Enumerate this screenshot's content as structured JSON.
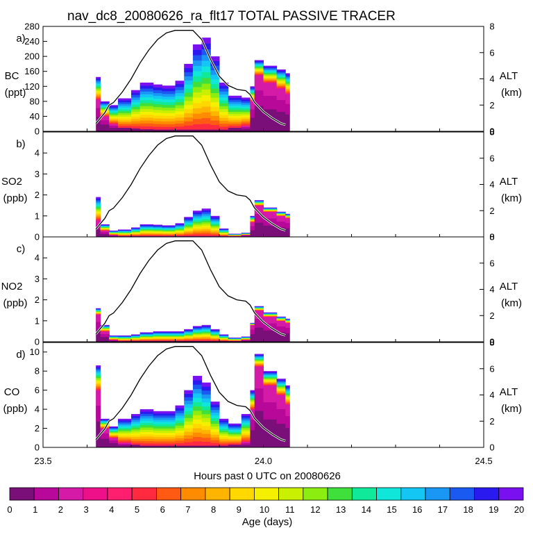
{
  "title": "nav_dc8_20080626_ra_flt17 TOTAL PASSIVE TRACER",
  "xaxis": {
    "label": "Hours past 0 UTC on 20080626",
    "range": [
      23.5,
      24.5
    ],
    "ticks": [
      "23.5",
      "24.0",
      "24.5"
    ]
  },
  "colorbar": {
    "label": "Age (days)",
    "ticks": [
      "0",
      "1",
      "2",
      "3",
      "4",
      "5",
      "6",
      "7",
      "8",
      "9",
      "10",
      "11",
      "12",
      "13",
      "14",
      "15",
      "16",
      "17",
      "18",
      "19",
      "20"
    ],
    "colors": [
      "#7a0f7a",
      "#b8089a",
      "#d61aa8",
      "#ee1088",
      "#ff1f6e",
      "#ff2a40",
      "#ff5a14",
      "#ff8c00",
      "#ffb400",
      "#ffd800",
      "#f4f000",
      "#c8f000",
      "#8ced10",
      "#3fe03c",
      "#10e89a",
      "#10e6da",
      "#14c6f4",
      "#1a96f4",
      "#1a5af0",
      "#2a1af0",
      "#7a10f0"
    ]
  },
  "right_axis": {
    "name": "ALT",
    "unit": "(km)",
    "range": [
      0,
      8
    ],
    "ticks": [
      "0",
      "2",
      "4",
      "6",
      "8"
    ]
  },
  "chart_data": [
    {
      "type": "area",
      "panel": "a)",
      "species": "BC",
      "unit": "(ppt)",
      "ylim": [
        0,
        280
      ],
      "yticks": [
        "0",
        "40",
        "80",
        "120",
        "160",
        "200",
        "240",
        "280"
      ],
      "x": [
        23.62,
        23.63,
        23.65,
        23.67,
        23.7,
        23.72,
        23.75,
        23.77,
        23.8,
        23.82,
        23.84,
        23.86,
        23.88,
        23.9,
        23.92,
        23.95,
        23.97,
        23.98,
        24.0,
        24.03,
        24.05
      ],
      "total": [
        145,
        80,
        70,
        88,
        110,
        130,
        125,
        122,
        135,
        180,
        232,
        250,
        200,
        130,
        95,
        90,
        120,
        190,
        175,
        165,
        155
      ],
      "fresh": [
        85,
        40,
        20,
        10,
        8,
        6,
        5,
        5,
        5,
        5,
        5,
        5,
        5,
        5,
        10,
        15,
        80,
        150,
        130,
        115,
        100
      ]
    },
    {
      "type": "area",
      "panel": "b)",
      "species": "SO2",
      "unit": "(ppb)",
      "ylim": [
        0,
        5
      ],
      "yticks": [
        "0",
        "1",
        "2",
        "3",
        "4"
      ],
      "x": [
        23.62,
        23.63,
        23.65,
        23.67,
        23.7,
        23.72,
        23.75,
        23.77,
        23.8,
        23.82,
        23.84,
        23.86,
        23.88,
        23.9,
        23.92,
        23.95,
        23.97,
        23.98,
        24.0,
        24.03,
        24.05
      ],
      "total": [
        1.9,
        0.6,
        0.3,
        0.35,
        0.45,
        0.6,
        0.58,
        0.55,
        0.65,
        0.95,
        1.25,
        1.35,
        1.0,
        0.4,
        0.15,
        0.2,
        1.0,
        1.75,
        1.4,
        1.2,
        1.1
      ],
      "fresh": [
        0.8,
        0.3,
        0.1,
        0.05,
        0.05,
        0.05,
        0.05,
        0.05,
        0.05,
        0.05,
        0.05,
        0.05,
        0.05,
        0.05,
        0.05,
        0.1,
        0.7,
        1.5,
        1.2,
        1.0,
        0.9
      ]
    },
    {
      "type": "area",
      "panel": "c)",
      "species": "NO2",
      "unit": "(ppb)",
      "ylim": [
        0,
        5
      ],
      "yticks": [
        "0",
        "1",
        "2",
        "3",
        "4"
      ],
      "x": [
        23.62,
        23.63,
        23.65,
        23.67,
        23.7,
        23.72,
        23.75,
        23.77,
        23.8,
        23.82,
        23.84,
        23.86,
        23.88,
        23.9,
        23.92,
        23.95,
        23.97,
        23.98,
        24.0,
        24.03,
        24.05
      ],
      "total": [
        1.6,
        0.8,
        0.3,
        0.3,
        0.35,
        0.45,
        0.5,
        0.5,
        0.5,
        0.6,
        0.75,
        0.8,
        0.6,
        0.35,
        0.2,
        0.25,
        0.9,
        1.7,
        1.4,
        1.2,
        1.1
      ],
      "fresh": [
        1.3,
        0.5,
        0.1,
        0.05,
        0.05,
        0.05,
        0.05,
        0.05,
        0.05,
        0.05,
        0.05,
        0.05,
        0.05,
        0.05,
        0.05,
        0.1,
        0.8,
        1.5,
        1.2,
        1.0,
        0.9
      ]
    },
    {
      "type": "area",
      "panel": "d)",
      "species": "CO",
      "unit": "(ppb)",
      "ylim": [
        0,
        11
      ],
      "yticks": [
        "0",
        "2",
        "4",
        "6",
        "8",
        "10"
      ],
      "x": [
        23.62,
        23.63,
        23.65,
        23.67,
        23.7,
        23.72,
        23.75,
        23.77,
        23.8,
        23.82,
        23.84,
        23.86,
        23.88,
        23.9,
        23.92,
        23.95,
        23.97,
        23.98,
        24.0,
        24.03,
        24.05
      ],
      "total": [
        8.6,
        3.0,
        2.2,
        3.0,
        3.5,
        4.0,
        3.8,
        3.8,
        4.4,
        6.0,
        7.5,
        6.8,
        4.8,
        3.0,
        2.5,
        3.5,
        6.0,
        9.8,
        8.0,
        7.2,
        6.5
      ],
      "fresh": [
        6.0,
        2.0,
        1.0,
        0.5,
        0.3,
        0.2,
        0.2,
        0.2,
        0.2,
        0.2,
        0.2,
        0.2,
        0.2,
        0.2,
        0.3,
        0.6,
        4.0,
        8.5,
        6.5,
        5.5,
        4.5
      ]
    }
  ],
  "altitude": {
    "x": [
      23.62,
      23.63,
      23.64,
      23.65,
      23.66,
      23.68,
      23.7,
      23.72,
      23.74,
      23.76,
      23.78,
      23.8,
      23.82,
      23.84,
      23.86,
      23.88,
      23.9,
      23.92,
      23.94,
      23.96,
      23.97,
      23.98,
      24.0,
      24.02,
      24.04,
      24.05
    ],
    "y": [
      0.6,
      1.0,
      1.4,
      2.0,
      2.2,
      3.0,
      4.0,
      5.2,
      6.2,
      7.0,
      7.5,
      7.7,
      7.7,
      7.7,
      7.0,
      5.5,
      4.2,
      3.5,
      3.2,
      3.1,
      2.8,
      2.2,
      1.5,
      1.0,
      0.6,
      0.5
    ]
  }
}
